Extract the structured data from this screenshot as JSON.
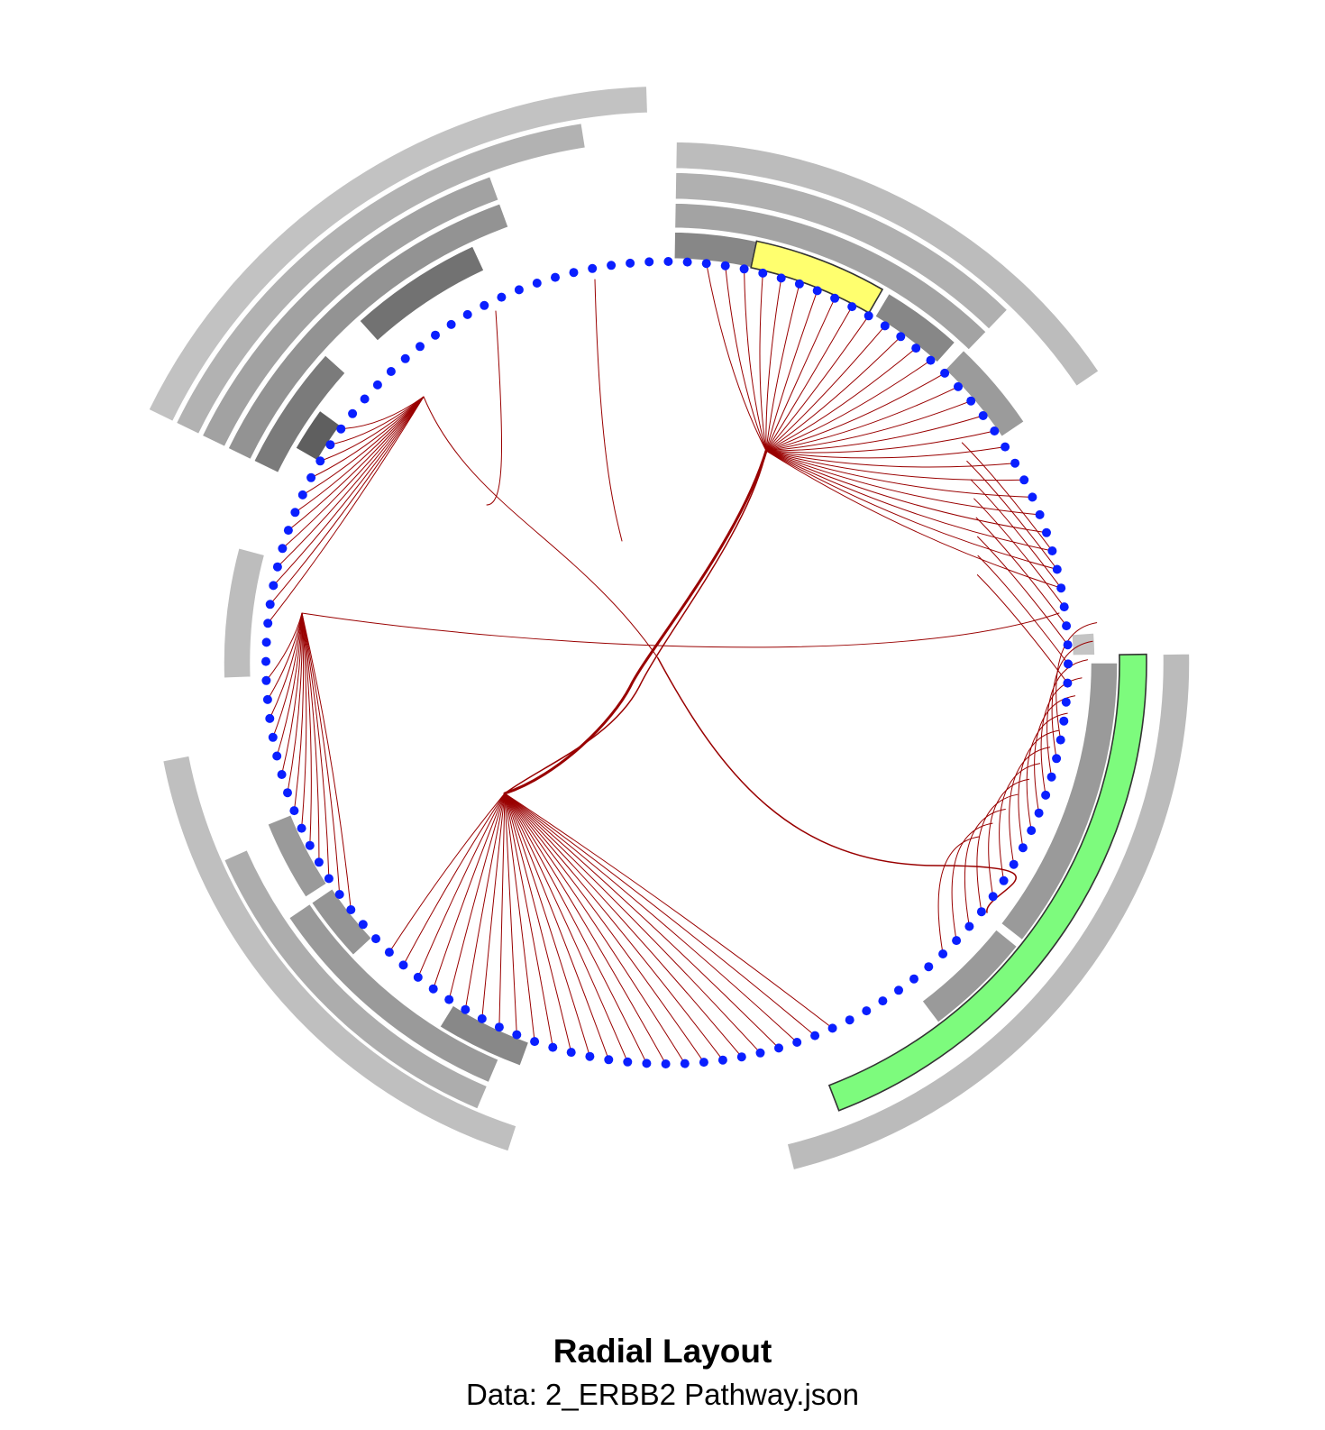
{
  "title": "Radial Layout",
  "subtitle": "Data: 2_ERBB2 Pathway.json",
  "colors": {
    "node": "#0a1fff",
    "edge": "#990000",
    "highlight_yellow": "#ffff6e",
    "highlight_green": "#7dfb7d"
  }
}
